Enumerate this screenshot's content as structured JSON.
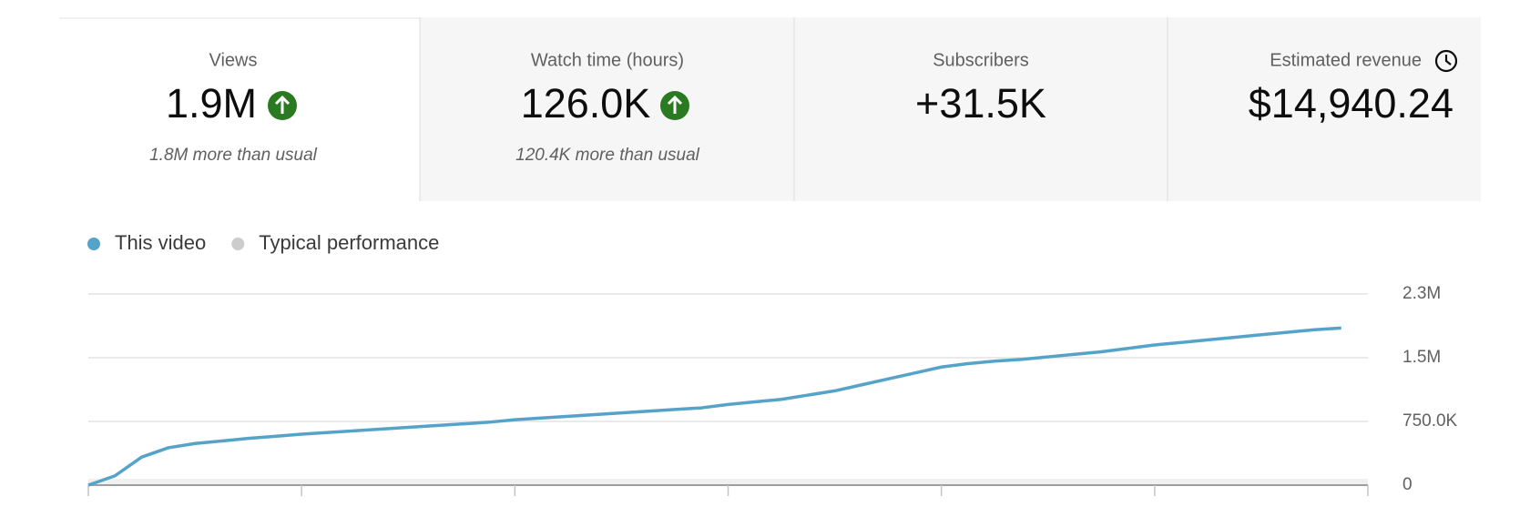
{
  "cards": [
    {
      "label": "Views",
      "value": "1.9M",
      "note": "1.8M more than usual"
    },
    {
      "label": "Watch time (hours)",
      "value": "126.0K",
      "note": "120.4K more than usual"
    },
    {
      "label": "Subscribers",
      "value": "+31.5K"
    },
    {
      "label": "Estimated revenue",
      "value": "$14,940.24"
    }
  ],
  "chart_data": {
    "type": "line",
    "xlim": [
      0,
      48
    ],
    "xticks": [
      0,
      8,
      16,
      24,
      32,
      40,
      48
    ],
    "ylim": [
      0,
      2250000
    ],
    "yticks": [
      0,
      {
        "value": 750000,
        "label": "750.0K"
      },
      {
        "value": 1500000,
        "label": "1.5M"
      },
      {
        "value": 2250000,
        "label": "2.3M"
      }
    ],
    "grid": true,
    "x": [
      0,
      1,
      2,
      3,
      4,
      5,
      6,
      7,
      8,
      9,
      10,
      11,
      12,
      13,
      14,
      15,
      16,
      17,
      18,
      19,
      20,
      21,
      22,
      23,
      24,
      25,
      26,
      27,
      28,
      29,
      30,
      31,
      32,
      33,
      34,
      35,
      36,
      37,
      38,
      39,
      40,
      41,
      42,
      43,
      44,
      45,
      46,
      47
    ],
    "series": [
      {
        "name": "This video",
        "color": "#56a3c9",
        "values": [
          0,
          110000,
          330000,
          440000,
          490000,
          520000,
          550000,
          575000,
          600000,
          620000,
          640000,
          660000,
          680000,
          700000,
          720000,
          740000,
          770000,
          790000,
          810000,
          830000,
          850000,
          870000,
          890000,
          910000,
          950000,
          980000,
          1010000,
          1060000,
          1110000,
          1180000,
          1250000,
          1320000,
          1390000,
          1430000,
          1460000,
          1480000,
          1510000,
          1540000,
          1570000,
          1610000,
          1650000,
          1680000,
          1710000,
          1740000,
          1770000,
          1800000,
          1830000,
          1850000
        ]
      },
      {
        "name": "Typical performance",
        "color": "#cccccc"
      }
    ]
  }
}
